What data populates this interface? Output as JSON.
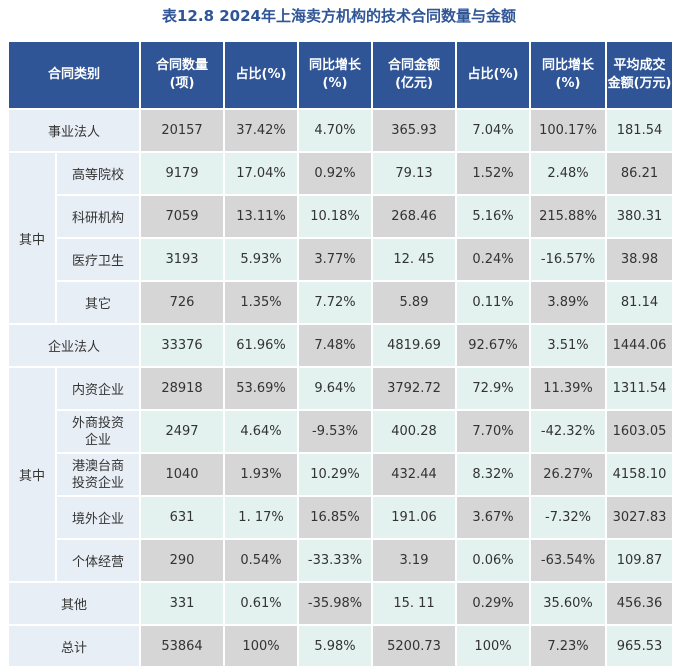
{
  "title": "表12.8    2024年上海卖方机构的技术合同数量与金额",
  "headers": {
    "category": "合同类别",
    "count": [
      "合同数量",
      "(项)"
    ],
    "count_share": "占比(%)",
    "count_growth": [
      "同比增长",
      "(%)"
    ],
    "amount": [
      "合同金额",
      "(亿元)"
    ],
    "amount_share": "占比(%)",
    "amount_growth": [
      "同比增长",
      "(%)"
    ],
    "avg": [
      "平均成交",
      "金额(万元)"
    ]
  },
  "group_label_1": "其中",
  "group_label_2": "其中",
  "rows": [
    {
      "name": "事业法人",
      "v": [
        "20157",
        "37.42%",
        "4.70%",
        "365.93",
        "7.04%",
        "100.17%",
        "181.54"
      ]
    },
    {
      "name": "高等院校",
      "v": [
        "9179",
        "17.04%",
        "0.92%",
        "79.13",
        "1.52%",
        "2.48%",
        "86.21"
      ]
    },
    {
      "name": "科研机构",
      "v": [
        "7059",
        "13.11%",
        "10.18%",
        "268.46",
        "5.16%",
        "215.88%",
        "380.31"
      ]
    },
    {
      "name": "医疗卫生",
      "v": [
        "3193",
        "5.93%",
        "3.77%",
        "12. 45",
        "0.24%",
        "-16.57%",
        "38.98"
      ]
    },
    {
      "name": "其它",
      "v": [
        "726",
        "1.35%",
        "7.72%",
        "5.89",
        "0.11%",
        "3.89%",
        "81.14"
      ]
    },
    {
      "name": "企业法人",
      "v": [
        "33376",
        "61.96%",
        "7.48%",
        "4819.69",
        "92.67%",
        "3.51%",
        "1444.06"
      ]
    },
    {
      "name": "内资企业",
      "v": [
        "28918",
        "53.69%",
        "9.64%",
        "3792.72",
        "72.9%",
        "11.39%",
        "1311.54"
      ]
    },
    {
      "name": [
        "外商投资",
        "企业"
      ],
      "v": [
        "2497",
        "4.64%",
        "-9.53%",
        "400.28",
        "7.70%",
        "-42.32%",
        "1603.05"
      ]
    },
    {
      "name": [
        "港澳台商",
        "投资企业"
      ],
      "v": [
        "1040",
        "1.93%",
        "10.29%",
        "432.44",
        "8.32%",
        "26.27%",
        "4158.10"
      ]
    },
    {
      "name": "境外企业",
      "v": [
        "631",
        "1. 17%",
        "16.85%",
        "191.06",
        "3.67%",
        "-7.32%",
        "3027.83"
      ]
    },
    {
      "name": "个体经营",
      "v": [
        "290",
        "0.54%",
        "-33.33%",
        "3.19",
        "0.06%",
        "-63.54%",
        "109.87"
      ]
    },
    {
      "name": "其他",
      "v": [
        "331",
        "0.61%",
        "-35.98%",
        "15. 11",
        "0.29%",
        "35.60%",
        "456.36"
      ]
    },
    {
      "name": "总计",
      "v": [
        "53864",
        "100%",
        "5.98%",
        "5200.73",
        "100%",
        "7.23%",
        "965.53"
      ]
    }
  ]
}
